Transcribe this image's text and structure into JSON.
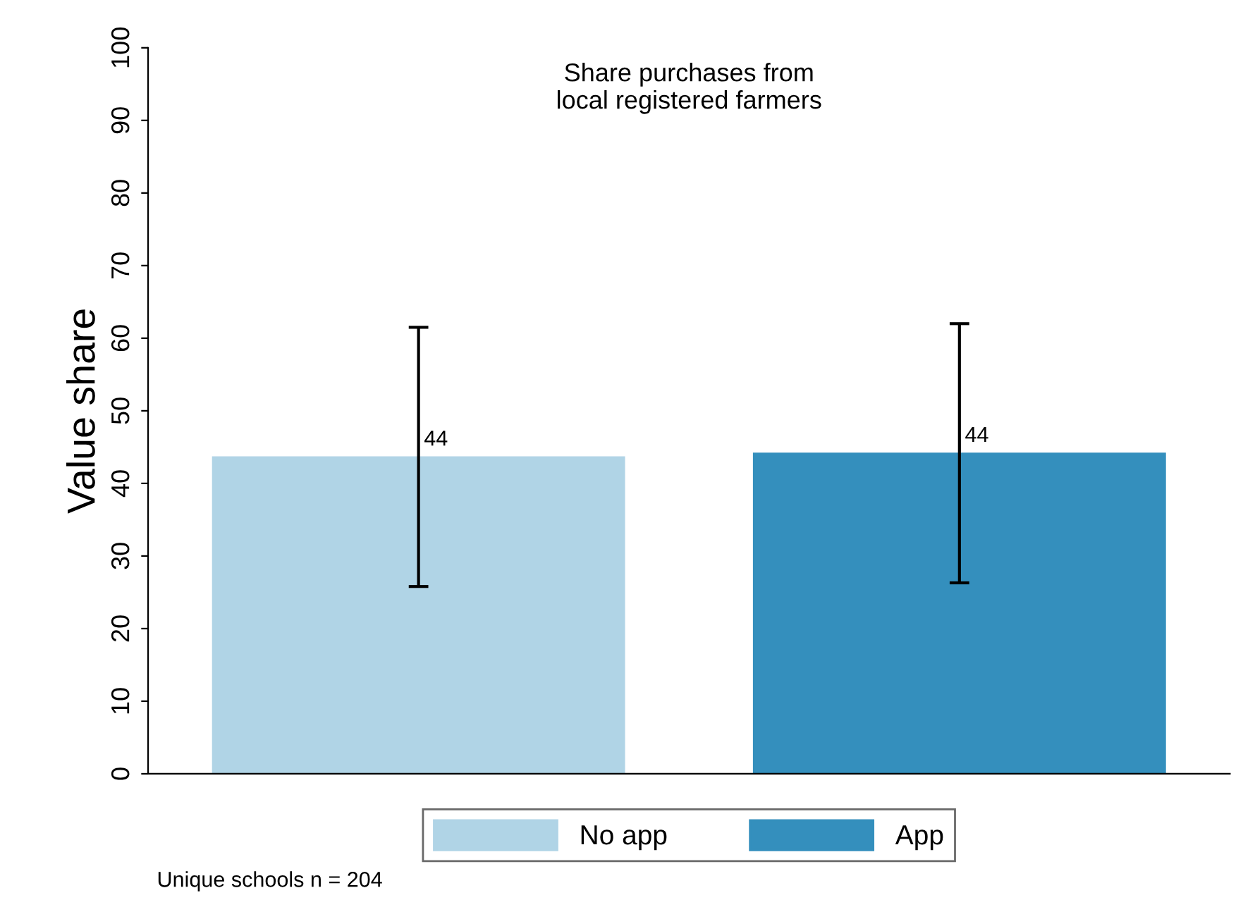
{
  "chart_data": {
    "type": "bar",
    "title": "Share purchases from\nlocal registered farmers",
    "ylabel": "Value share",
    "categories": [
      null,
      null
    ],
    "series": [
      {
        "name": "No app",
        "color": "#b0d4e6",
        "values": [
          43.6,
          null
        ],
        "errors": [
          [
            25.8,
            61.5
          ],
          null
        ],
        "value_labels": [
          "44",
          null
        ]
      },
      {
        "name": "App",
        "color": "#348fbd",
        "values": [
          null,
          44.1
        ],
        "errors": [
          null,
          [
            26.3,
            62.0
          ]
        ],
        "value_labels": [
          null,
          "44"
        ]
      }
    ],
    "ylim": [
      0,
      100
    ],
    "yticks": [
      0,
      10,
      20,
      30,
      40,
      50,
      60,
      70,
      80,
      90,
      100
    ],
    "legend": "bottom",
    "grid": false,
    "annotations": [
      "Unique schools n = 204"
    ]
  }
}
